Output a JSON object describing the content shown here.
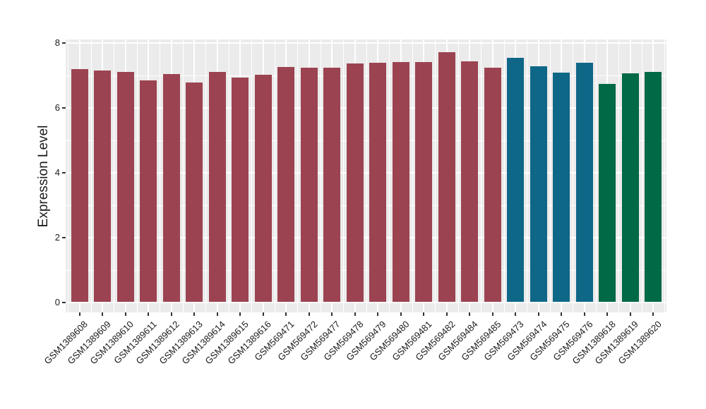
{
  "figure": {
    "background": "#FFFFFF",
    "panel_background": "#EBEBEB",
    "gridline_color": "#FFFFFF",
    "tick_color": "#333333",
    "text_color": "#1A1A1A"
  },
  "chart_data": {
    "type": "bar",
    "title": "",
    "xlabel": "",
    "ylabel": "Expression Level",
    "ylim": [
      0,
      8
    ],
    "yticks_major": [
      0,
      2,
      4,
      6,
      8
    ],
    "yticks_minor": [
      1,
      3,
      5,
      7
    ],
    "grid": true,
    "legend_position": "none",
    "x_label_angle_deg": 45,
    "categories": [
      "GSM1389608",
      "GSM1389609",
      "GSM1389610",
      "GSM1389611",
      "GSM1389612",
      "GSM1389613",
      "GSM1389614",
      "GSM1389615",
      "GSM1389616",
      "GSM569471",
      "GSM569472",
      "GSM569477",
      "GSM569478",
      "GSM569479",
      "GSM569480",
      "GSM569481",
      "GSM569482",
      "GSM569484",
      "GSM569485",
      "GSM569473",
      "GSM569474",
      "GSM569475",
      "GSM569476",
      "GSM1389618",
      "GSM1389619",
      "GSM1389620"
    ],
    "values": [
      7.19,
      7.15,
      7.09,
      6.84,
      7.03,
      6.77,
      7.1,
      6.92,
      7.01,
      7.26,
      7.22,
      7.23,
      7.36,
      7.39,
      7.41,
      7.41,
      7.7,
      7.42,
      7.23,
      7.53,
      7.28,
      7.07,
      7.38,
      6.73,
      7.06,
      7.1
    ],
    "bar_groups": [
      "maroon",
      "maroon",
      "maroon",
      "maroon",
      "maroon",
      "maroon",
      "maroon",
      "maroon",
      "maroon",
      "maroon",
      "maroon",
      "maroon",
      "maroon",
      "maroon",
      "maroon",
      "maroon",
      "maroon",
      "maroon",
      "maroon",
      "teal",
      "teal",
      "teal",
      "teal",
      "green",
      "green",
      "green"
    ],
    "group_colors": {
      "maroon": "#9C4351",
      "teal": "#0E6787",
      "green": "#006945"
    }
  }
}
